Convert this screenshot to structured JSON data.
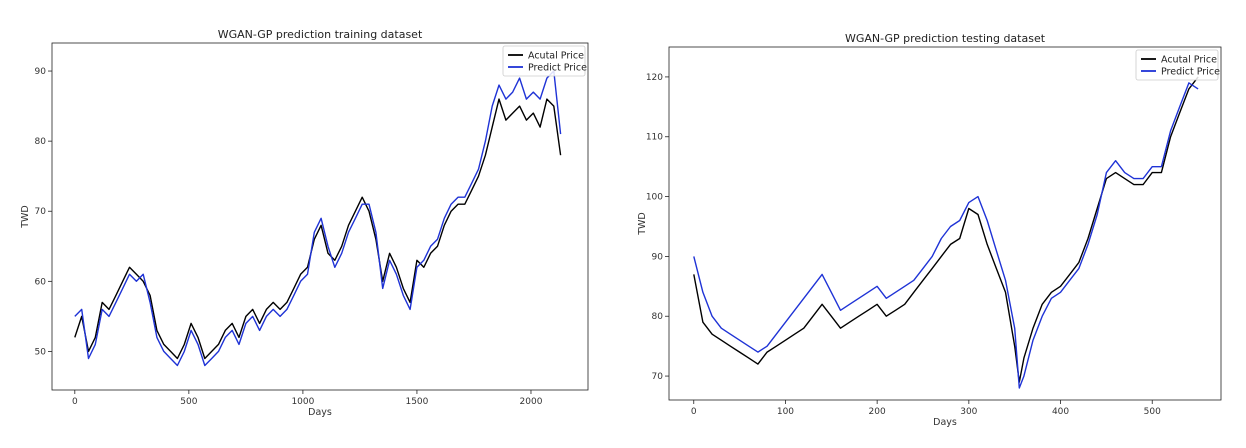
{
  "chart_data": [
    {
      "type": "line",
      "title": "WGAN-GP prediction training dataset",
      "xlabel": "Days",
      "ylabel": "TWD",
      "xlim": [
        -100,
        2250
      ],
      "ylim": [
        44.5,
        94
      ],
      "xticks": [
        0,
        500,
        1000,
        1500,
        2000
      ],
      "yticks": [
        50,
        60,
        70,
        80,
        90
      ],
      "legend_position": "top-right",
      "legend": [
        "Acutal Price",
        "Predict Price"
      ],
      "series": [
        {
          "name": "Acutal Price",
          "color": "#000000",
          "x": [
            0,
            30,
            60,
            90,
            120,
            150,
            180,
            210,
            240,
            270,
            300,
            330,
            360,
            390,
            420,
            450,
            480,
            510,
            540,
            570,
            600,
            630,
            660,
            690,
            720,
            750,
            780,
            810,
            840,
            870,
            900,
            930,
            960,
            990,
            1020,
            1050,
            1080,
            1110,
            1140,
            1170,
            1200,
            1230,
            1260,
            1290,
            1320,
            1350,
            1380,
            1410,
            1440,
            1470,
            1500,
            1530,
            1560,
            1590,
            1620,
            1650,
            1680,
            1710,
            1740,
            1770,
            1800,
            1830,
            1860,
            1890,
            1920,
            1950,
            1980,
            2010,
            2040,
            2070,
            2100,
            2130
          ],
          "y": [
            52,
            55,
            50,
            52,
            57,
            56,
            58,
            60,
            62,
            61,
            60,
            58,
            53,
            51,
            50,
            49,
            51,
            54,
            52,
            49,
            50,
            51,
            53,
            54,
            52,
            55,
            56,
            54,
            56,
            57,
            56,
            57,
            59,
            61,
            62,
            66,
            68,
            64,
            63,
            65,
            68,
            70,
            72,
            70,
            66,
            60,
            64,
            62,
            59,
            57,
            63,
            62,
            64,
            65,
            68,
            70,
            71,
            71,
            73,
            75,
            78,
            82,
            86,
            83,
            84,
            85,
            83,
            84,
            82,
            86,
            85,
            78
          ]
        },
        {
          "name": "Predict Price",
          "color": "#1f33d6",
          "x": [
            0,
            30,
            60,
            90,
            120,
            150,
            180,
            210,
            240,
            270,
            300,
            330,
            360,
            390,
            420,
            450,
            480,
            510,
            540,
            570,
            600,
            630,
            660,
            690,
            720,
            750,
            780,
            810,
            840,
            870,
            900,
            930,
            960,
            990,
            1020,
            1050,
            1080,
            1110,
            1140,
            1170,
            1200,
            1230,
            1260,
            1290,
            1320,
            1350,
            1380,
            1410,
            1440,
            1470,
            1500,
            1530,
            1560,
            1590,
            1620,
            1650,
            1680,
            1710,
            1740,
            1770,
            1800,
            1830,
            1860,
            1890,
            1920,
            1950,
            1980,
            2010,
            2040,
            2070,
            2100,
            2130
          ],
          "y": [
            55,
            56,
            49,
            51,
            56,
            55,
            57,
            59,
            61,
            60,
            61,
            57,
            52,
            50,
            49,
            48,
            50,
            53,
            51,
            48,
            49,
            50,
            52,
            53,
            51,
            54,
            55,
            53,
            55,
            56,
            55,
            56,
            58,
            60,
            61,
            67,
            69,
            65,
            62,
            64,
            67,
            69,
            71,
            71,
            67,
            59,
            63,
            61,
            58,
            56,
            62,
            63,
            65,
            66,
            69,
            71,
            72,
            72,
            74,
            76,
            80,
            85,
            88,
            86,
            87,
            89,
            86,
            87,
            86,
            89,
            90,
            81
          ]
        }
      ]
    },
    {
      "type": "line",
      "title": "WGAN-GP prediction testing dataset",
      "xlabel": "Days",
      "ylabel": "TWD",
      "xlim": [
        -27,
        575
      ],
      "ylim": [
        66,
        125
      ],
      "xticks": [
        0,
        100,
        200,
        300,
        400,
        500
      ],
      "yticks": [
        70,
        80,
        90,
        100,
        110,
        120
      ],
      "legend_position": "top-right",
      "legend": [
        "Acutal Price",
        "Predict Price"
      ],
      "series": [
        {
          "name": "Acutal Price",
          "color": "#000000",
          "x": [
            0,
            10,
            20,
            30,
            40,
            50,
            60,
            70,
            80,
            90,
            100,
            110,
            120,
            130,
            140,
            150,
            160,
            170,
            180,
            190,
            200,
            210,
            220,
            230,
            240,
            250,
            260,
            270,
            280,
            290,
            300,
            310,
            320,
            330,
            340,
            350,
            355,
            360,
            370,
            380,
            390,
            400,
            410,
            420,
            430,
            440,
            450,
            460,
            470,
            480,
            490,
            500,
            510,
            520,
            530,
            540,
            550
          ],
          "y": [
            87,
            79,
            77,
            76,
            75,
            74,
            73,
            72,
            74,
            75,
            76,
            77,
            78,
            80,
            82,
            80,
            78,
            79,
            80,
            81,
            82,
            80,
            81,
            82,
            84,
            86,
            88,
            90,
            92,
            93,
            98,
            97,
            92,
            88,
            84,
            75,
            69,
            73,
            78,
            82,
            84,
            85,
            87,
            89,
            93,
            98,
            103,
            104,
            103,
            102,
            102,
            104,
            104,
            110,
            114,
            118,
            120
          ]
        },
        {
          "name": "Predict Price",
          "color": "#1f33d6",
          "x": [
            0,
            10,
            20,
            30,
            40,
            50,
            60,
            70,
            80,
            90,
            100,
            110,
            120,
            130,
            140,
            150,
            160,
            170,
            180,
            190,
            200,
            210,
            220,
            230,
            240,
            250,
            260,
            270,
            280,
            290,
            300,
            310,
            320,
            330,
            340,
            350,
            355,
            360,
            370,
            380,
            390,
            400,
            410,
            420,
            430,
            440,
            450,
            460,
            470,
            480,
            490,
            500,
            510,
            520,
            530,
            540,
            550
          ],
          "y": [
            90,
            84,
            80,
            78,
            77,
            76,
            75,
            74,
            75,
            77,
            79,
            81,
            83,
            85,
            87,
            84,
            81,
            82,
            83,
            84,
            85,
            83,
            84,
            85,
            86,
            88,
            90,
            93,
            95,
            96,
            99,
            100,
            96,
            91,
            86,
            78,
            68,
            70,
            76,
            80,
            83,
            84,
            86,
            88,
            92,
            97,
            104,
            106,
            104,
            103,
            103,
            105,
            105,
            111,
            115,
            119,
            118
          ]
        }
      ]
    }
  ]
}
